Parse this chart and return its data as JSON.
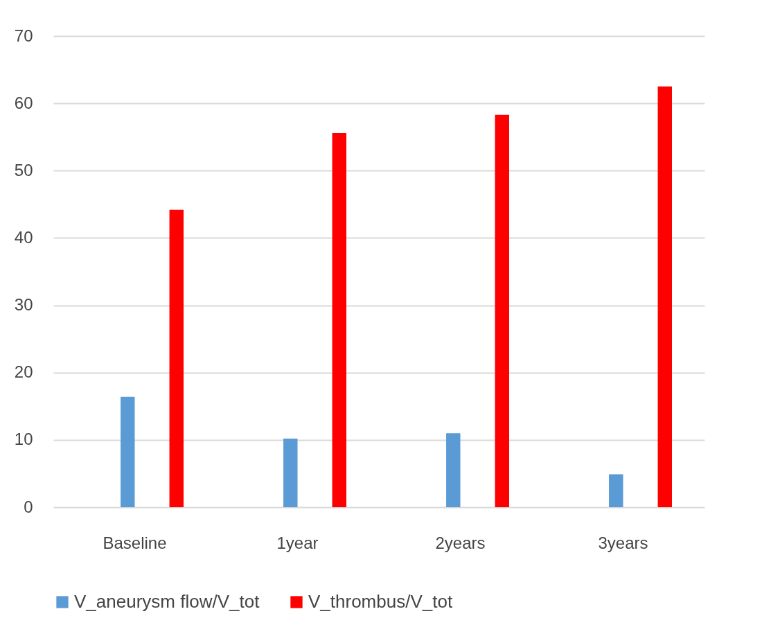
{
  "chart_data": {
    "type": "bar",
    "categories": [
      "Baseline",
      "1year",
      "2years",
      "3years"
    ],
    "series": [
      {
        "name": "V_aneurysm flow/V_tot",
        "color": "#5b9bd5",
        "values": [
          16.4,
          10.2,
          11,
          4.9
        ]
      },
      {
        "name": "V_thrombus/V_tot",
        "color": "#ff0000",
        "values": [
          44.2,
          55.6,
          58.3,
          62.5
        ]
      }
    ],
    "ylim": [
      0,
      70
    ],
    "yticks": [
      0,
      10,
      20,
      30,
      40,
      50,
      60,
      70
    ],
    "grid": "y",
    "legend": "bottom"
  }
}
